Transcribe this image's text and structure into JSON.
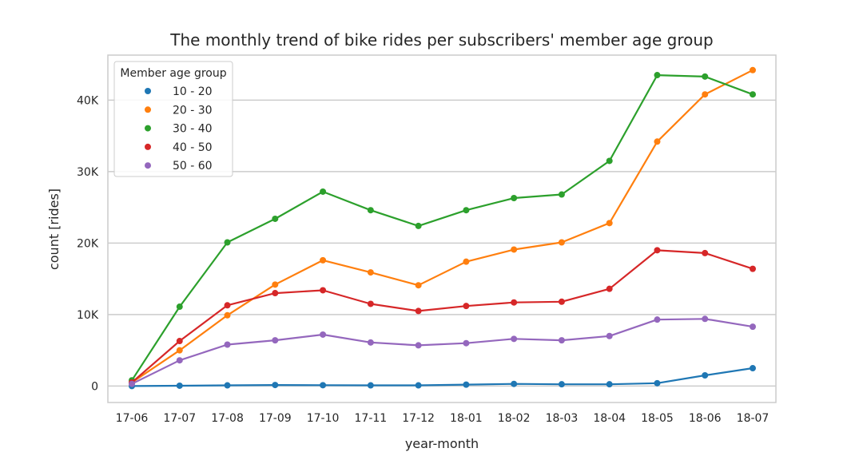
{
  "chart_data": {
    "type": "line",
    "title": "The monthly trend of bike rides per subscribers' member age group",
    "xlabel": "year-month",
    "ylabel": "count [rides]",
    "categories": [
      "17-06",
      "17-07",
      "17-08",
      "17-09",
      "17-10",
      "17-11",
      "17-12",
      "18-01",
      "18-02",
      "18-03",
      "18-04",
      "18-05",
      "18-06",
      "18-07"
    ],
    "ylim": [
      -2300,
      46300
    ],
    "yticks": [
      0,
      10000,
      20000,
      30000,
      40000
    ],
    "ytick_labels": [
      "0",
      "10K",
      "20K",
      "30K",
      "40K"
    ],
    "grid": "horizontal",
    "legend": {
      "title": "Member age group",
      "placement": "upper-left"
    },
    "series": [
      {
        "name": "10 - 20",
        "color": "#1f77b4",
        "values": [
          0,
          50,
          100,
          150,
          120,
          100,
          100,
          200,
          300,
          250,
          250,
          400,
          1500,
          2500
        ]
      },
      {
        "name": "20 - 30",
        "color": "#ff7f0e",
        "values": [
          500,
          5000,
          9900,
          14200,
          17600,
          15900,
          14100,
          17400,
          19100,
          20100,
          22800,
          34200,
          40800,
          44200
        ]
      },
      {
        "name": "30 - 40",
        "color": "#2ca02c",
        "values": [
          800,
          11100,
          20100,
          23400,
          27200,
          24600,
          22400,
          24600,
          26300,
          26800,
          31500,
          43500,
          43300,
          40800
        ]
      },
      {
        "name": "40 - 50",
        "color": "#d62728",
        "values": [
          500,
          6300,
          11300,
          13000,
          13400,
          11500,
          10500,
          11200,
          11700,
          11800,
          13600,
          19000,
          18600,
          16400
        ]
      },
      {
        "name": "50 - 60",
        "color": "#9467bd",
        "values": [
          300,
          3600,
          5800,
          6400,
          7200,
          6100,
          5700,
          6000,
          6600,
          6400,
          7000,
          9300,
          9400,
          8300
        ]
      }
    ]
  }
}
